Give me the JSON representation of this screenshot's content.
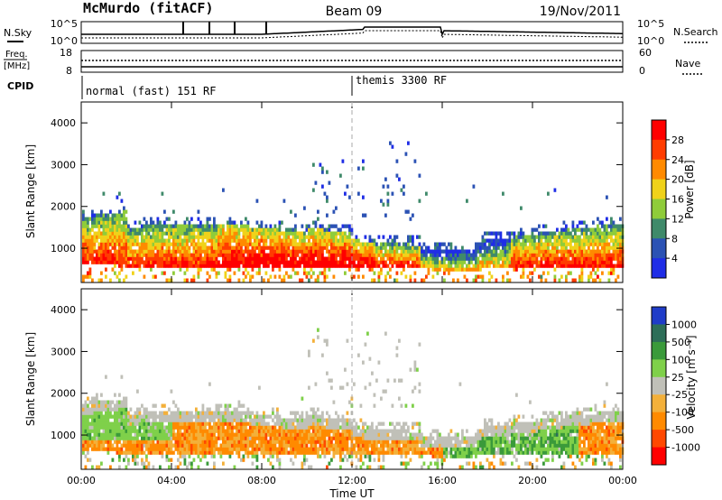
{
  "header": {
    "station": "McMurdo (fitACF)",
    "beam": "Beam 09",
    "date": "19/Nov/2011"
  },
  "summary": {
    "nsky_label": "N.Sky",
    "nsky_ticks": [
      "10^5",
      "10^0"
    ],
    "nsearch_label": "N.Search",
    "nsearch_ticks": [
      "10^5",
      "10^0"
    ],
    "freq_label": [
      "Freq.",
      "[MHz]"
    ],
    "freq_ticks": [
      "18",
      "8"
    ],
    "nave_label": "Nave",
    "nave_ticks": [
      "60",
      "0"
    ],
    "cpid_label": "CPID",
    "cpid_segments": [
      "normal (fast) 151 RF",
      "themis 3300 RF"
    ]
  },
  "chart_data": [
    {
      "type": "heatmap",
      "title": "",
      "ylabel": "Slant Range [km]",
      "xlabel": "",
      "x_ticks": [
        "00:00",
        "04:00",
        "08:00",
        "12:00",
        "16:00",
        "20:00",
        "00:00"
      ],
      "y_ticks": [
        "1000",
        "2000",
        "3000",
        "4000"
      ],
      "ylim": [
        180,
        4500
      ],
      "xlim_hours": [
        0,
        24
      ],
      "colorbar_label": "Power [dB]",
      "colorbar_ticks": [
        "4",
        "8",
        "12",
        "16",
        "20",
        "24",
        "28"
      ],
      "colorbar_colors": [
        "#1f2de6",
        "#2b52b4",
        "#3f8a6a",
        "#8fcc3a",
        "#f0d21a",
        "#ff8a00",
        "#ff3c00",
        "#ff0000"
      ],
      "marker_time": "12:00"
    },
    {
      "type": "heatmap",
      "title": "",
      "ylabel": "Slant Range [km]",
      "xlabel": "Time UT",
      "x_ticks": [
        "00:00",
        "04:00",
        "08:00",
        "12:00",
        "16:00",
        "20:00",
        "00:00"
      ],
      "y_ticks": [
        "1000",
        "2000",
        "3000",
        "4000"
      ],
      "ylim": [
        180,
        4500
      ],
      "xlim_hours": [
        0,
        24
      ],
      "colorbar_label": "Velocity [m s⁻¹]",
      "colorbar_ticks": [
        "1000",
        "500",
        "100",
        "25",
        "-25",
        "-100",
        "-500",
        "-1000"
      ],
      "colorbar_colors": [
        "#1f3cc8",
        "#2d6e58",
        "#3a9a3a",
        "#7fd04a",
        "#c0c0b8",
        "#f3b03a",
        "#ff8a00",
        "#ff4800",
        "#ff0000"
      ],
      "marker_time": "12:00"
    }
  ]
}
